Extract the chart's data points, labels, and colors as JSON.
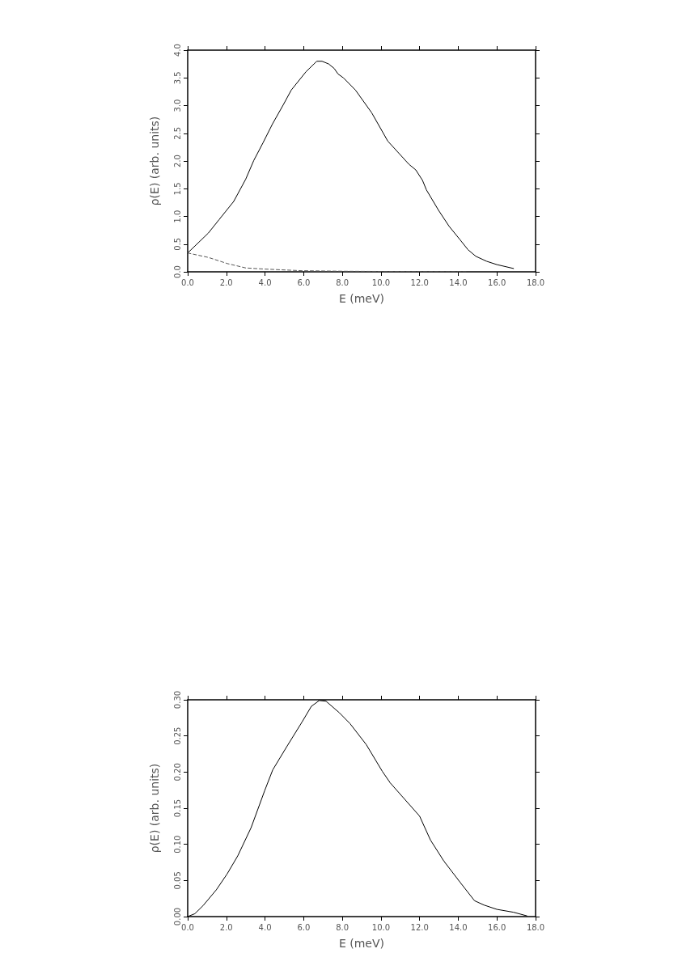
{
  "chart_data": [
    {
      "type": "line",
      "xlabel": "E (meV)",
      "ylabel": "ρ(E) (arb. units)",
      "xlim": [
        0,
        18
      ],
      "ylim": [
        0,
        4
      ],
      "xticks": [
        {
          "value": 0,
          "label": "0.0"
        },
        {
          "value": 2,
          "label": "2.0"
        },
        {
          "value": 4,
          "label": "4.0"
        },
        {
          "value": 6,
          "label": "6.0"
        },
        {
          "value": 8,
          "label": "8.0"
        },
        {
          "value": 10,
          "label": "10.0"
        },
        {
          "value": 12,
          "label": "12.0"
        },
        {
          "value": 14,
          "label": "14.0"
        },
        {
          "value": 16,
          "label": "16.0"
        },
        {
          "value": 18,
          "label": "18.0"
        }
      ],
      "yticks": [
        {
          "value": 0,
          "label": "0.0"
        },
        {
          "value": 0.5,
          "label": "0.5"
        },
        {
          "value": 1,
          "label": "1.0"
        },
        {
          "value": 1.5,
          "label": "1.5"
        },
        {
          "value": 2,
          "label": "2.0"
        },
        {
          "value": 2.5,
          "label": "2.5"
        },
        {
          "value": 3,
          "label": "3.0"
        },
        {
          "value": 3.5,
          "label": "3.5"
        },
        {
          "value": 4,
          "label": "4.0"
        }
      ],
      "grid": false,
      "marker": "none",
      "series": [
        {
          "color": "#000000",
          "line_style": "solid",
          "x": [
            0,
            1.07,
            1.62,
            2.38,
            3.0,
            3.42,
            3.9,
            4.39,
            4.94,
            5.36,
            6.12,
            6.68,
            6.95,
            7.3,
            7.58,
            7.78,
            8.06,
            8.68,
            9.52,
            10.35,
            11.45,
            11.8,
            12.15,
            12.35,
            12.98,
            13.53,
            14.09,
            14.5,
            14.91,
            15.47,
            16.0,
            16.86
          ],
          "values": [
            0.34,
            0.7,
            0.94,
            1.27,
            1.67,
            2.01,
            2.33,
            2.67,
            3.01,
            3.28,
            3.61,
            3.8,
            3.8,
            3.75,
            3.67,
            3.57,
            3.5,
            3.28,
            2.87,
            2.36,
            1.94,
            1.84,
            1.65,
            1.48,
            1.11,
            0.82,
            0.58,
            0.4,
            0.28,
            0.19,
            0.13,
            0.06
          ]
        },
        {
          "color": "#555555",
          "line_style": "dashed",
          "x": [
            0,
            1.07,
            2.04,
            3.0,
            3.97,
            5.9,
            8.1,
            14.4
          ],
          "values": [
            0.34,
            0.26,
            0.15,
            0.07,
            0.05,
            0.02,
            0.01,
            0.0
          ]
        }
      ]
    },
    {
      "type": "line",
      "xlabel": "E (meV)",
      "ylabel": "ρ(E) (arb. units)",
      "xlim": [
        0,
        18
      ],
      "ylim": [
        0,
        0.3
      ],
      "xticks": [
        {
          "value": 0,
          "label": "0.0"
        },
        {
          "value": 2,
          "label": "2.0"
        },
        {
          "value": 4,
          "label": "4.0"
        },
        {
          "value": 6,
          "label": "6.0"
        },
        {
          "value": 8,
          "label": "8.0"
        },
        {
          "value": 10,
          "label": "10.0"
        },
        {
          "value": 12,
          "label": "12.0"
        },
        {
          "value": 14,
          "label": "14.0"
        },
        {
          "value": 16,
          "label": "16.0"
        },
        {
          "value": 18,
          "label": "18.0"
        }
      ],
      "yticks": [
        {
          "value": 0,
          "label": "0.00"
        },
        {
          "value": 0.05,
          "label": "0.05"
        },
        {
          "value": 0.1,
          "label": "0.10"
        },
        {
          "value": 0.15,
          "label": "0.15"
        },
        {
          "value": 0.2,
          "label": "0.20"
        },
        {
          "value": 0.25,
          "label": "0.25"
        },
        {
          "value": 0.3,
          "label": "0.30"
        }
      ],
      "grid": false,
      "marker": "none",
      "series": [
        {
          "color": "#000000",
          "line_style": "solid",
          "x": [
            0,
            0.37,
            0.79,
            1.48,
            2.04,
            2.59,
            3.28,
            3.98,
            4.4,
            5.1,
            5.91,
            6.4,
            6.81,
            7.16,
            7.85,
            8.4,
            9.24,
            10.07,
            10.48,
            12.0,
            12.56,
            13.25,
            14.08,
            14.84,
            15.33,
            16.0,
            16.86,
            17.55
          ],
          "values": [
            0,
            0.004,
            0.015,
            0.037,
            0.059,
            0.084,
            0.123,
            0.174,
            0.203,
            0.234,
            0.269,
            0.291,
            0.299,
            0.298,
            0.282,
            0.267,
            0.238,
            0.201,
            0.185,
            0.139,
            0.106,
            0.077,
            0.048,
            0.022,
            0.016,
            0.01,
            0.006,
            0.001
          ]
        }
      ]
    }
  ]
}
